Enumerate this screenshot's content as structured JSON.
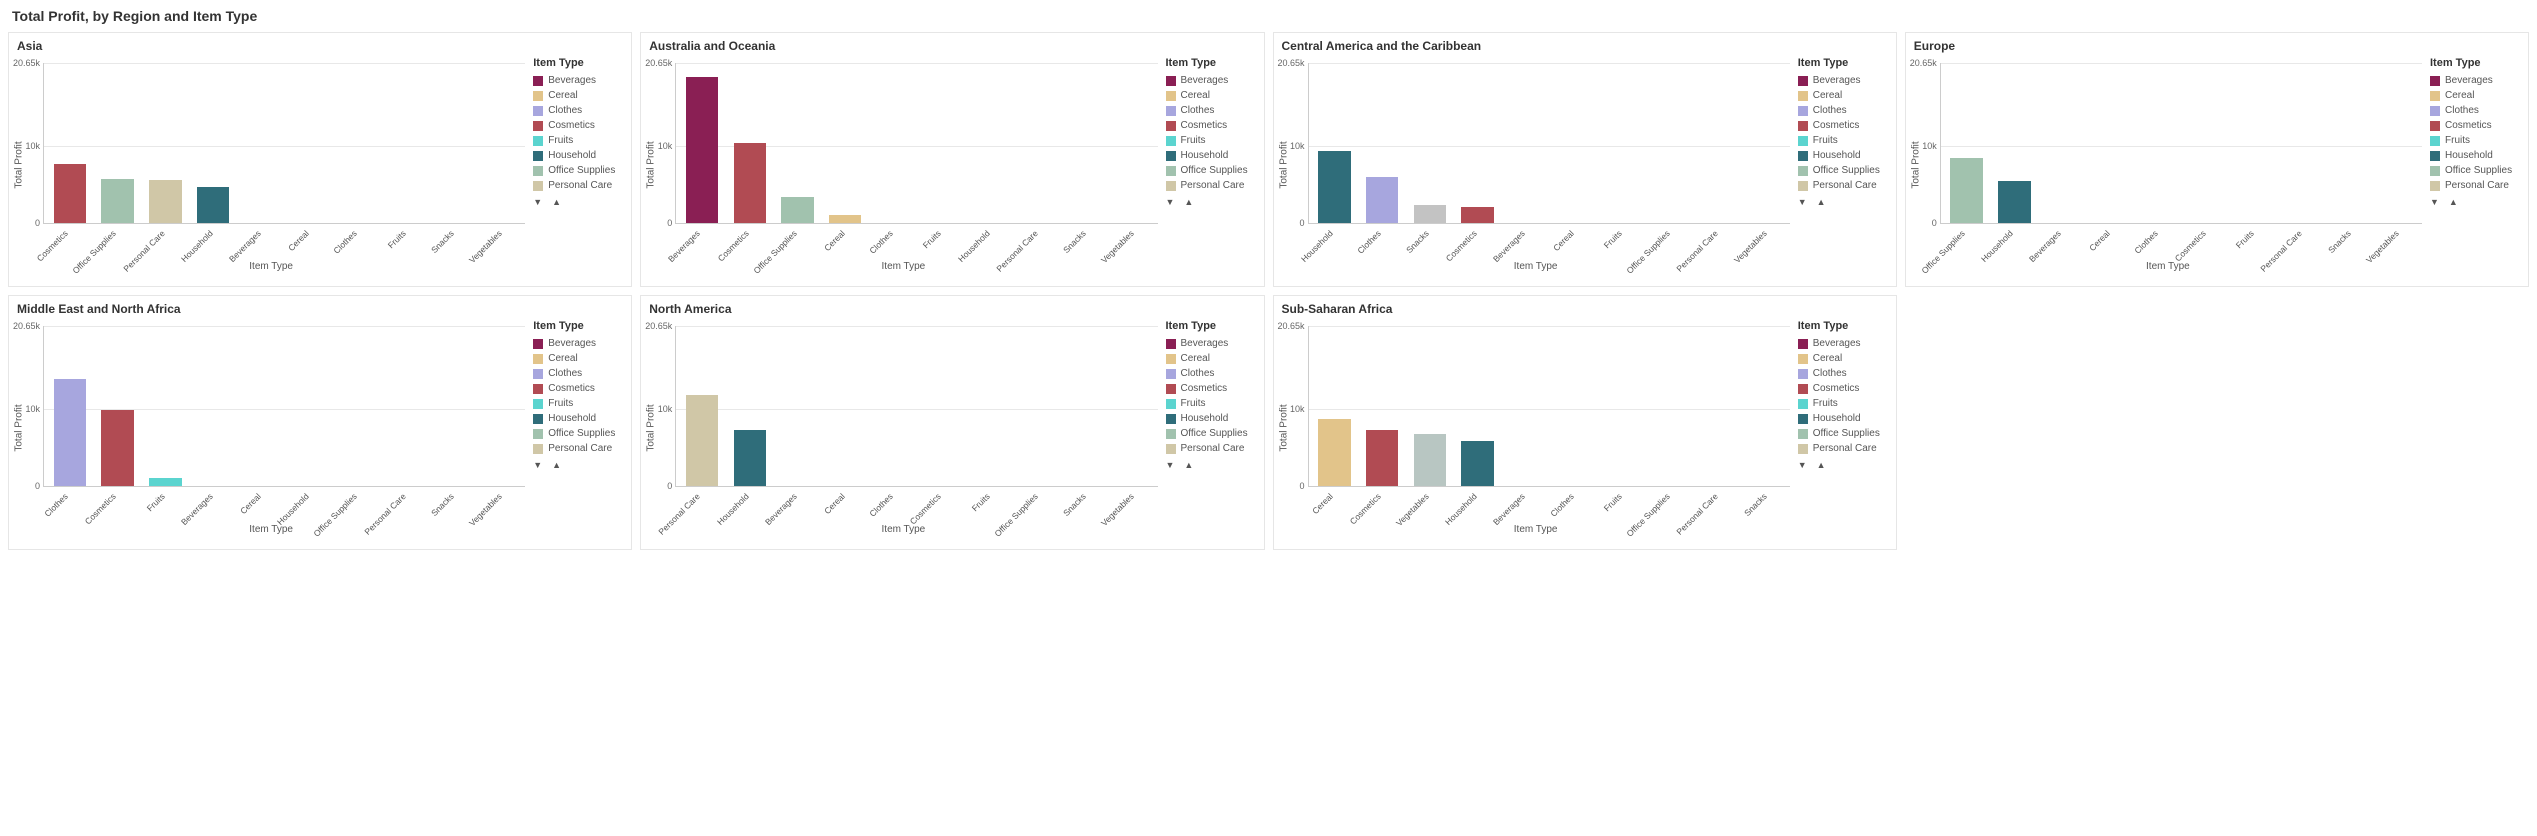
{
  "dashboard_title": "Total Profit, by Region and Item Type",
  "y_axis_label": "Total Profit",
  "x_axis_label": "Item Type",
  "legend_title": "Item Type",
  "y_max": 20650,
  "y_ticks": [
    {
      "value": 0,
      "label": "0"
    },
    {
      "value": 10000,
      "label": "10k"
    },
    {
      "value": 20650,
      "label": "20.65k"
    }
  ],
  "colors": {
    "Beverages": "#8a1f54",
    "Cereal": "#e2c48a",
    "Clothes": "#a7a6de",
    "Cosmetics": "#b14b53",
    "Fruits": "#5bd4cf",
    "Household": "#2f6d7a",
    "Office Supplies": "#a1c2ae",
    "Personal Care": "#d0c7a7",
    "Snacks": "#c3c3c3",
    "Vegetables": "#b8c6c2"
  },
  "grid_color": "#e8e8e8",
  "axis_color": "#cccccc",
  "legend_items": [
    "Beverages",
    "Cereal",
    "Clothes",
    "Cosmetics",
    "Fruits",
    "Household",
    "Office Supplies",
    "Personal Care"
  ],
  "panels": [
    {
      "title": "Asia",
      "bars": [
        {
          "cat": "Cosmetics",
          "value": 7600
        },
        {
          "cat": "Office Supplies",
          "value": 5700
        },
        {
          "cat": "Personal Care",
          "value": 5600
        },
        {
          "cat": "Household",
          "value": 4700
        },
        {
          "cat": "Beverages",
          "value": 0
        },
        {
          "cat": "Cereal",
          "value": 0
        },
        {
          "cat": "Clothes",
          "value": 0
        },
        {
          "cat": "Fruits",
          "value": 0
        },
        {
          "cat": "Snacks",
          "value": 0
        },
        {
          "cat": "Vegetables",
          "value": 0
        }
      ]
    },
    {
      "title": "Australia and Oceania",
      "bars": [
        {
          "cat": "Beverages",
          "value": 18800
        },
        {
          "cat": "Cosmetics",
          "value": 10300
        },
        {
          "cat": "Office Supplies",
          "value": 3400
        },
        {
          "cat": "Cereal",
          "value": 1000
        },
        {
          "cat": "Clothes",
          "value": 0
        },
        {
          "cat": "Fruits",
          "value": 0
        },
        {
          "cat": "Household",
          "value": 0
        },
        {
          "cat": "Personal Care",
          "value": 0
        },
        {
          "cat": "Snacks",
          "value": 0
        },
        {
          "cat": "Vegetables",
          "value": 0
        }
      ]
    },
    {
      "title": "Central America and the Caribbean",
      "bars": [
        {
          "cat": "Household",
          "value": 9300
        },
        {
          "cat": "Clothes",
          "value": 6000
        },
        {
          "cat": "Snacks",
          "value": 2300
        },
        {
          "cat": "Cosmetics",
          "value": 2100
        },
        {
          "cat": "Beverages",
          "value": 0
        },
        {
          "cat": "Cereal",
          "value": 0
        },
        {
          "cat": "Fruits",
          "value": 0
        },
        {
          "cat": "Office Supplies",
          "value": 0
        },
        {
          "cat": "Personal Care",
          "value": 0
        },
        {
          "cat": "Vegetables",
          "value": 0
        }
      ]
    },
    {
      "title": "Europe",
      "bars": [
        {
          "cat": "Office Supplies",
          "value": 8400
        },
        {
          "cat": "Household",
          "value": 5400
        },
        {
          "cat": "Beverages",
          "value": 0
        },
        {
          "cat": "Cereal",
          "value": 0
        },
        {
          "cat": "Clothes",
          "value": 0
        },
        {
          "cat": "Cosmetics",
          "value": 0
        },
        {
          "cat": "Fruits",
          "value": 0
        },
        {
          "cat": "Personal Care",
          "value": 0
        },
        {
          "cat": "Snacks",
          "value": 0
        },
        {
          "cat": "Vegetables",
          "value": 0
        }
      ]
    },
    {
      "title": "Middle East and North Africa",
      "bars": [
        {
          "cat": "Clothes",
          "value": 13800
        },
        {
          "cat": "Cosmetics",
          "value": 9800
        },
        {
          "cat": "Fruits",
          "value": 1000
        },
        {
          "cat": "Beverages",
          "value": 0
        },
        {
          "cat": "Cereal",
          "value": 0
        },
        {
          "cat": "Household",
          "value": 0
        },
        {
          "cat": "Office Supplies",
          "value": 0
        },
        {
          "cat": "Personal Care",
          "value": 0
        },
        {
          "cat": "Snacks",
          "value": 0
        },
        {
          "cat": "Vegetables",
          "value": 0
        }
      ]
    },
    {
      "title": "North America",
      "bars": [
        {
          "cat": "Personal Care",
          "value": 11800
        },
        {
          "cat": "Household",
          "value": 7200
        },
        {
          "cat": "Beverages",
          "value": 0
        },
        {
          "cat": "Cereal",
          "value": 0
        },
        {
          "cat": "Clothes",
          "value": 0
        },
        {
          "cat": "Cosmetics",
          "value": 0
        },
        {
          "cat": "Fruits",
          "value": 0
        },
        {
          "cat": "Office Supplies",
          "value": 0
        },
        {
          "cat": "Snacks",
          "value": 0
        },
        {
          "cat": "Vegetables",
          "value": 0
        }
      ]
    },
    {
      "title": "Sub-Saharan Africa",
      "bars": [
        {
          "cat": "Cereal",
          "value": 8700
        },
        {
          "cat": "Cosmetics",
          "value": 7200
        },
        {
          "cat": "Vegetables",
          "value": 6700
        },
        {
          "cat": "Household",
          "value": 5800
        },
        {
          "cat": "Beverages",
          "value": 0
        },
        {
          "cat": "Clothes",
          "value": 0
        },
        {
          "cat": "Fruits",
          "value": 0
        },
        {
          "cat": "Office Supplies",
          "value": 0
        },
        {
          "cat": "Personal Care",
          "value": 0
        },
        {
          "cat": "Snacks",
          "value": 0
        }
      ]
    }
  ]
}
